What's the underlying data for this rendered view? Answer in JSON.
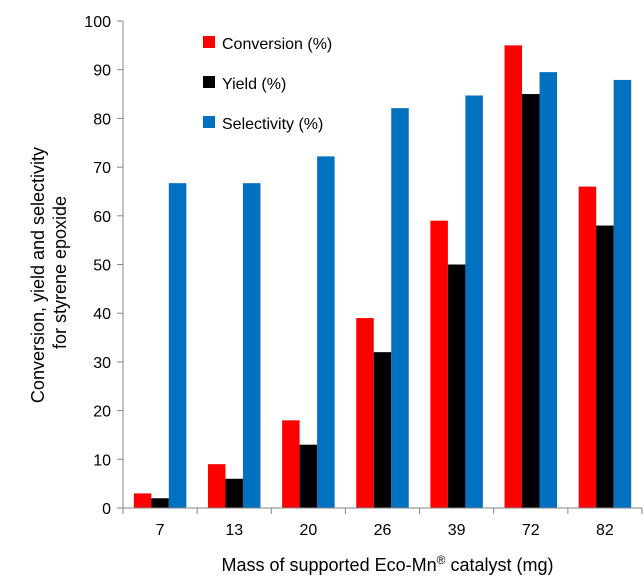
{
  "chart_data": {
    "type": "bar",
    "categories": [
      "7",
      "13",
      "20",
      "26",
      "39",
      "72",
      "82"
    ],
    "series": [
      {
        "name": "Conversion (%)",
        "color": "#ff0000",
        "values": [
          3,
          9,
          18,
          39,
          59,
          95,
          66
        ]
      },
      {
        "name": "Yield (%)",
        "color": "#000000",
        "values": [
          2,
          6,
          13,
          32,
          50,
          85,
          58
        ]
      },
      {
        "name": "Selectivity (%)",
        "color": "#0070c0",
        "values": [
          66.7,
          66.7,
          72.2,
          82.1,
          84.7,
          89.5,
          87.9
        ]
      }
    ],
    "ylim": [
      0,
      100
    ],
    "yticks": [
      0,
      10,
      20,
      30,
      40,
      50,
      60,
      70,
      80,
      90,
      100
    ],
    "xlabel": {
      "text": "Mass of supported Eco-Mn",
      "superscript": "®",
      "suffix": " catalyst (mg)"
    },
    "ylabel_lines": [
      "Conversion, yield and selectivity",
      "for styrene epoxide"
    ],
    "grid": false,
    "legend_position": "top-left"
  }
}
